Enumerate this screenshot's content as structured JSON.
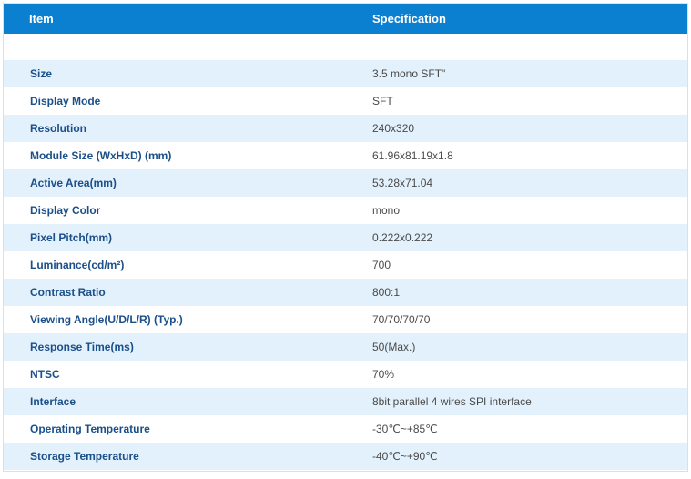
{
  "header": {
    "item": "Item",
    "specification": "Specification"
  },
  "rows": [
    {
      "label": "Size",
      "value": "3.5 mono SFT\""
    },
    {
      "label": "Display Mode",
      "value": "SFT"
    },
    {
      "label": "Resolution",
      "value": "240x320"
    },
    {
      "label": "Module Size (WxHxD) (mm)",
      "value": "61.96x81.19x1.8"
    },
    {
      "label": "Active Area(mm)",
      "value": "53.28x71.04"
    },
    {
      "label": "Display Color",
      "value": "mono"
    },
    {
      "label": "Pixel Pitch(mm)",
      "value": "0.222x0.222"
    },
    {
      "label": "Luminance(cd/m²)",
      "value": "700"
    },
    {
      "label": "Contrast Ratio",
      "value": "800:1"
    },
    {
      "label": "Viewing Angle(U/D/L/R) (Typ.)",
      "value": "70/70/70/70"
    },
    {
      "label": "Response Time(ms)",
      "value": "50(Max.)"
    },
    {
      "label": "NTSC",
      "value": "70%"
    },
    {
      "label": "Interface",
      "value": "8bit parallel 4 wires SPI interface"
    },
    {
      "label": "Operating Temperature",
      "value": "-30℃~+85℃"
    },
    {
      "label": "Storage Temperature",
      "value": "-40℃~+90℃"
    }
  ],
  "colors": {
    "header_bg": "#0b7fd0",
    "row_alt_bg": "#e2f1fb",
    "label_text": "#1b4f8a",
    "value_text": "#4a4a4a"
  }
}
